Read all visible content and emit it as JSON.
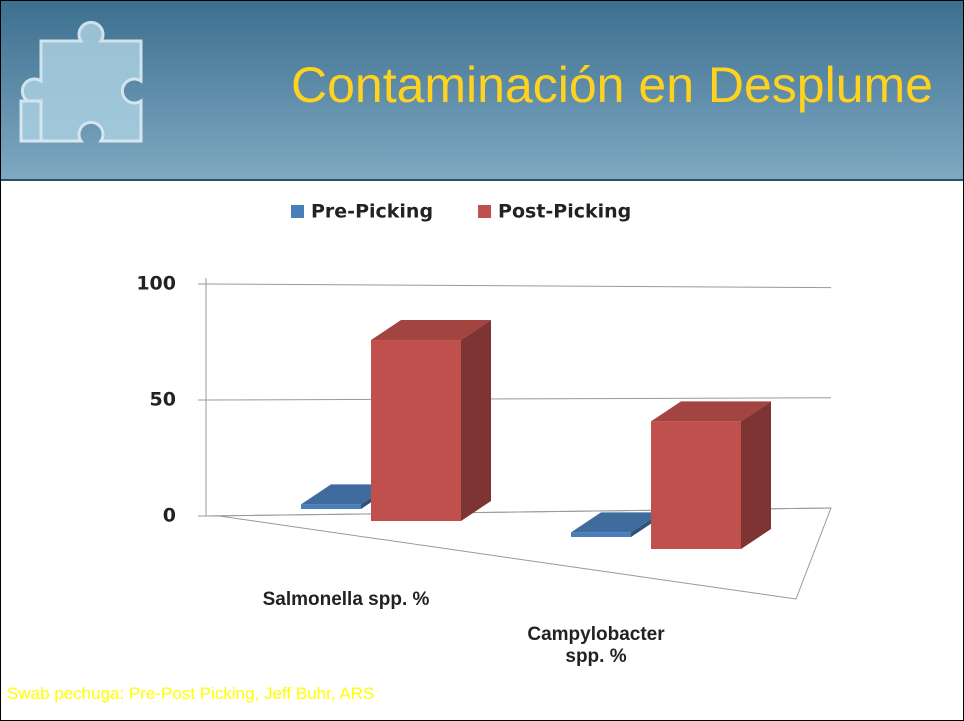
{
  "title": "Contaminación en Desplume",
  "chart_data": {
    "type": "bar3d",
    "categories": [
      "Salmonella spp. %",
      "Campylobacter spp. %"
    ],
    "series": [
      {
        "name": "Pre-Picking",
        "color": "#4a7ebb",
        "values": [
          2,
          2
        ]
      },
      {
        "name": "Post-Picking",
        "color": "#c0504d",
        "values": [
          78,
          55
        ]
      }
    ],
    "ylim": [
      0,
      100
    ],
    "yticks": [
      0,
      50,
      100
    ],
    "grid": true,
    "legend": "top"
  },
  "footnote": "Swab pechuga: Pre-Post Picking, Jeff Buhr, ARS"
}
